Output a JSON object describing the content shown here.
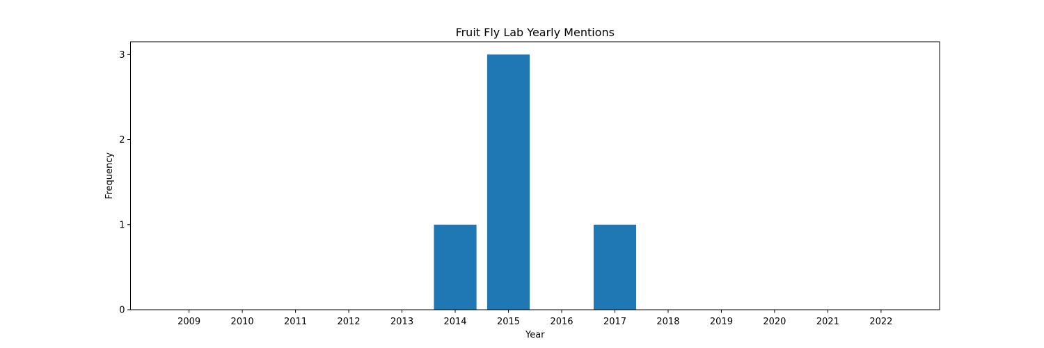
{
  "chart_data": {
    "type": "bar",
    "title": "Fruit Fly Lab Yearly Mentions",
    "xlabel": "Year",
    "ylabel": "Frequency",
    "categories": [
      "2009",
      "2010",
      "2011",
      "2012",
      "2013",
      "2014",
      "2015",
      "2016",
      "2017",
      "2018",
      "2019",
      "2020",
      "2021",
      "2022"
    ],
    "values": [
      0,
      0,
      0,
      0,
      0,
      1,
      3,
      0,
      1,
      0,
      0,
      0,
      0,
      0
    ],
    "yticks": [
      0,
      1,
      2,
      3
    ],
    "ylim": [
      0,
      3.15
    ],
    "grid": false,
    "legend": "none",
    "colors": {
      "bar": "#1f77b4",
      "axes": "#000000",
      "background": "#ffffff"
    }
  }
}
